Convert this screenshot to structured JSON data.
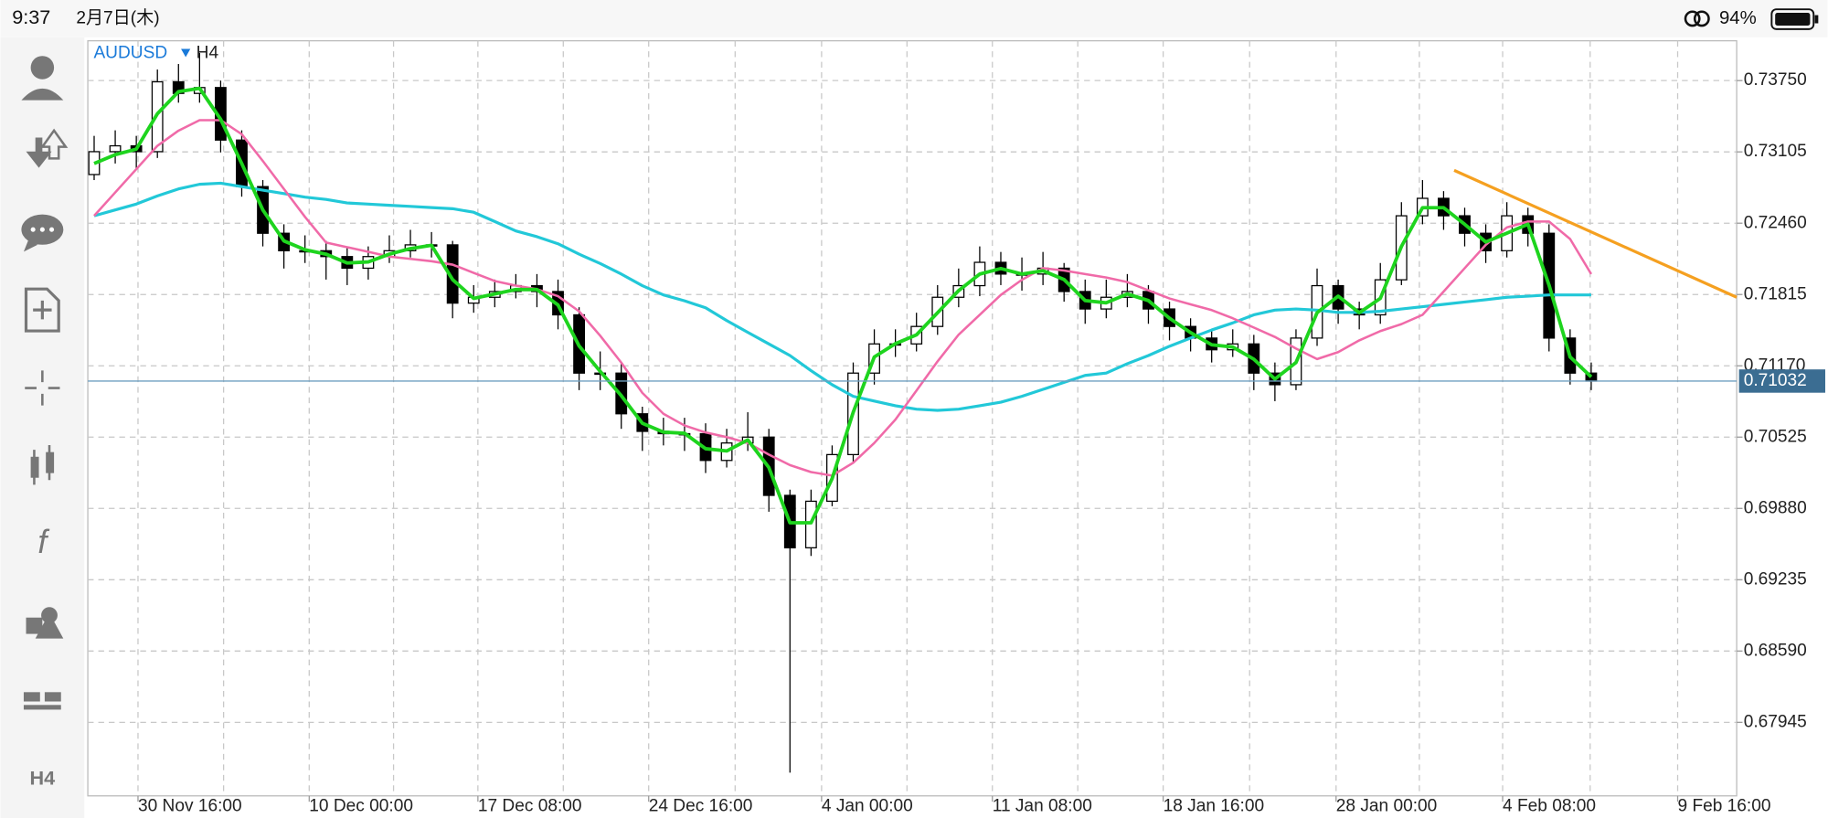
{
  "status_bar": {
    "time": "9:37",
    "date": "2月7日(木)",
    "battery": "94%"
  },
  "toolbar": {
    "function_icon": "f",
    "timeframe": "H4"
  },
  "chart_data": {
    "type": "candlestick",
    "symbol": "AUDUSD",
    "timeframe": "H4",
    "open": [
      0.729,
      0.73107,
      0.7316,
      0.73107,
      0.73739,
      0.73634,
      0.73687,
      0.73212,
      0.72791,
      0.72369,
      0.72211,
      0.72211,
      0.72158,
      0.72053,
      0.72158,
      0.72211,
      0.72264,
      0.72264,
      0.71737,
      0.7179,
      0.71842,
      0.71895,
      0.71842,
      0.71631,
      0.71104,
      0.71104,
      0.70736,
      0.70577,
      0.70556,
      0.70556,
      0.70314,
      0.70472,
      0.70525,
      0.69998,
      0.69524,
      0.69945,
      0.70367,
      0.71104,
      0.71368,
      0.71368,
      0.71526,
      0.7179,
      0.71895,
      0.72106,
      0.72,
      0.72,
      0.72053,
      0.71842,
      0.71684,
      0.7179,
      0.71842,
      0.71684,
      0.71526,
      0.71421,
      0.71315,
      0.71368,
      0.71104,
      0.70999,
      0.71421,
      0.71895,
      0.71684,
      0.71631,
      0.71948,
      0.72527,
      0.72685,
      0.72527,
      0.72369,
      0.72211,
      0.72527,
      0.72369,
      0.71421,
      0.71104
    ],
    "high": [
      0.7325,
      0.733,
      0.7325,
      0.7385,
      0.739,
      0.74,
      0.7375,
      0.733,
      0.7285,
      0.7245,
      0.7235,
      0.723,
      0.7225,
      0.7225,
      0.7235,
      0.724,
      0.7238,
      0.723,
      0.719,
      0.7195,
      0.72,
      0.72,
      0.7195,
      0.717,
      0.713,
      0.712,
      0.708,
      0.707,
      0.707,
      0.7065,
      0.706,
      0.7075,
      0.706,
      0.7005,
      0.7005,
      0.7045,
      0.712,
      0.715,
      0.715,
      0.7165,
      0.719,
      0.7205,
      0.7225,
      0.722,
      0.7215,
      0.722,
      0.721,
      0.7195,
      0.7195,
      0.72,
      0.719,
      0.7175,
      0.716,
      0.715,
      0.715,
      0.7145,
      0.712,
      0.715,
      0.7205,
      0.7195,
      0.7175,
      0.721,
      0.7265,
      0.7285,
      0.7275,
      0.726,
      0.7245,
      0.7265,
      0.726,
      0.7245,
      0.715,
      0.712
    ],
    "low": [
      0.7285,
      0.73,
      0.7295,
      0.7305,
      0.7355,
      0.7355,
      0.731,
      0.727,
      0.7225,
      0.7205,
      0.721,
      0.7195,
      0.719,
      0.7195,
      0.721,
      0.7215,
      0.7215,
      0.716,
      0.7165,
      0.717,
      0.7178,
      0.717,
      0.715,
      0.7095,
      0.7095,
      0.706,
      0.704,
      0.7045,
      0.704,
      0.702,
      0.7025,
      0.704,
      0.6985,
      0.6749,
      0.6945,
      0.699,
      0.703,
      0.71,
      0.7125,
      0.713,
      0.7145,
      0.717,
      0.718,
      0.719,
      0.7185,
      0.719,
      0.7175,
      0.7155,
      0.716,
      0.717,
      0.7155,
      0.714,
      0.713,
      0.712,
      0.7125,
      0.7095,
      0.7085,
      0.7095,
      0.7135,
      0.7155,
      0.715,
      0.7155,
      0.719,
      0.7245,
      0.724,
      0.7225,
      0.721,
      0.7215,
      0.7225,
      0.713,
      0.71,
      0.7095
    ],
    "close": [
      0.73107,
      0.7316,
      0.73107,
      0.73739,
      0.73634,
      0.73687,
      0.73212,
      0.72791,
      0.72369,
      0.72211,
      0.72211,
      0.72158,
      0.72053,
      0.72158,
      0.72211,
      0.72264,
      0.72264,
      0.71737,
      0.7179,
      0.71842,
      0.71895,
      0.71842,
      0.71631,
      0.71104,
      0.71104,
      0.70736,
      0.70577,
      0.70556,
      0.70556,
      0.70314,
      0.70472,
      0.70525,
      0.69998,
      0.69524,
      0.69945,
      0.70367,
      0.71104,
      0.71368,
      0.71368,
      0.71526,
      0.7179,
      0.71895,
      0.72106,
      0.72,
      0.72,
      0.72053,
      0.71842,
      0.71684,
      0.7179,
      0.71842,
      0.71684,
      0.71526,
      0.71421,
      0.71315,
      0.71368,
      0.71104,
      0.70999,
      0.71421,
      0.71895,
      0.71684,
      0.71631,
      0.71948,
      0.72527,
      0.72685,
      0.72527,
      0.72369,
      0.72211,
      0.72527,
      0.72369,
      0.71421,
      0.71104,
      0.71032
    ],
    "moving_averages": [
      {
        "color": "#22c8d8",
        "values": [
          0.72527,
          0.7258,
          0.72633,
          0.72707,
          0.7277,
          0.72812,
          0.72822,
          0.72791,
          0.72759,
          0.72728,
          0.72696,
          0.72675,
          0.72643,
          0.72633,
          0.72622,
          0.72612,
          0.72601,
          0.72591,
          0.72559,
          0.72475,
          0.7239,
          0.72338,
          0.72274,
          0.7218,
          0.72095,
          0.72,
          0.71895,
          0.71811,
          0.71758,
          0.71695,
          0.71579,
          0.71473,
          0.71368,
          0.71263,
          0.71126,
          0.70999,
          0.70894,
          0.70851,
          0.70809,
          0.70778,
          0.70767,
          0.70778,
          0.70809,
          0.70841,
          0.70894,
          0.70957,
          0.7102,
          0.71083,
          0.71104,
          0.71189,
          0.71263,
          0.71347,
          0.71421,
          0.71494,
          0.71558,
          0.71631,
          0.71674,
          0.71684,
          0.71674,
          0.71653,
          0.71653,
          0.71663,
          0.71684,
          0.71705,
          0.71726,
          0.71747,
          0.71768,
          0.7179,
          0.718,
          0.71811,
          0.71811,
          0.71811
        ]
      },
      {
        "color": "#f06aa8",
        "values": [
          0.72527,
          0.72738,
          0.72949,
          0.7316,
          0.73297,
          0.73392,
          0.73392,
          0.73265,
          0.73023,
          0.7277,
          0.72517,
          0.72285,
          0.72243,
          0.72201,
          0.72158,
          0.72137,
          0.72116,
          0.72085,
          0.72011,
          0.71937,
          0.71895,
          0.71863,
          0.718,
          0.71663,
          0.71442,
          0.71199,
          0.70925,
          0.70736,
          0.7063,
          0.70567,
          0.70525,
          0.70472,
          0.70367,
          0.70272,
          0.70209,
          0.70177,
          0.70293,
          0.70472,
          0.70683,
          0.70946,
          0.7121,
          0.71452,
          0.71631,
          0.71811,
          0.71948,
          0.72053,
          0.72032,
          0.72,
          0.71969,
          0.71927,
          0.71853,
          0.71779,
          0.71726,
          0.71674,
          0.716,
          0.71516,
          0.71431,
          0.71326,
          0.71231,
          0.71294,
          0.714,
          0.71484,
          0.71547,
          0.71631,
          0.71842,
          0.72053,
          0.72264,
          0.72422,
          0.72475,
          0.72475,
          0.72317,
          0.72
        ]
      },
      {
        "color": "#1ed41e",
        "values": [
          0.73,
          0.7308,
          0.7313,
          0.7345,
          0.7365,
          0.7368,
          0.734,
          0.73,
          0.7258,
          0.723,
          0.7222,
          0.7218,
          0.721,
          0.7211,
          0.7218,
          0.7223,
          0.7226,
          0.7195,
          0.7178,
          0.7182,
          0.7186,
          0.7186,
          0.7172,
          0.7135,
          0.7112,
          0.709,
          0.7065,
          0.7057,
          0.7056,
          0.7042,
          0.704,
          0.705,
          0.7025,
          0.6975,
          0.6975,
          0.7015,
          0.7075,
          0.7125,
          0.7137,
          0.7145,
          0.7165,
          0.7185,
          0.72,
          0.7205,
          0.72,
          0.7203,
          0.7195,
          0.7176,
          0.7174,
          0.7182,
          0.7176,
          0.716,
          0.7147,
          0.7136,
          0.7134,
          0.7123,
          0.7105,
          0.712,
          0.7165,
          0.718,
          0.7165,
          0.7178,
          0.7225,
          0.726,
          0.726,
          0.7245,
          0.7229,
          0.7237,
          0.7245,
          0.719,
          0.7125,
          0.7107
        ]
      }
    ],
    "trendline": {
      "color": "#f5a020",
      "x": [
        64.5,
        77.9
      ],
      "values": [
        0.72938,
        0.7179
      ]
    },
    "current_price": 0.71032,
    "xlim": [
      -0.3,
      77.9
    ],
    "ylim": [
      0.6728,
      0.7411
    ],
    "xticks": [
      {
        "value": 2.08,
        "label": "30 Nov 16:00"
      },
      {
        "value": 10.2,
        "label": "10 Dec 00:00"
      },
      {
        "value": 18.2,
        "label": "17 Dec 08:00"
      },
      {
        "value": 26.3,
        "label": "24 Dec 16:00"
      },
      {
        "value": 34.5,
        "label": "4 Jan 00:00"
      },
      {
        "value": 42.6,
        "label": "11 Jan 08:00"
      },
      {
        "value": 50.7,
        "label": "18 Jan 16:00"
      },
      {
        "value": 58.9,
        "label": "28 Jan 00:00"
      },
      {
        "value": 66.8,
        "label": "4 Feb 08:00"
      },
      {
        "value": 75.1,
        "label": "9 Feb 16:00"
      }
    ],
    "yticks": [
      {
        "value": 0.7375,
        "label": "0.73750"
      },
      0.73105,
      {
        "value": 0.7246,
        "label": "0.72460"
      },
      0.71815,
      {
        "value": 0.7117,
        "label": "0.71170"
      },
      0.70525,
      {
        "value": 0.6988,
        "label": "0.69880"
      },
      0.69235,
      {
        "value": 0.6859,
        "label": "0.68590"
      },
      0.67945
    ],
    "grid": true
  }
}
